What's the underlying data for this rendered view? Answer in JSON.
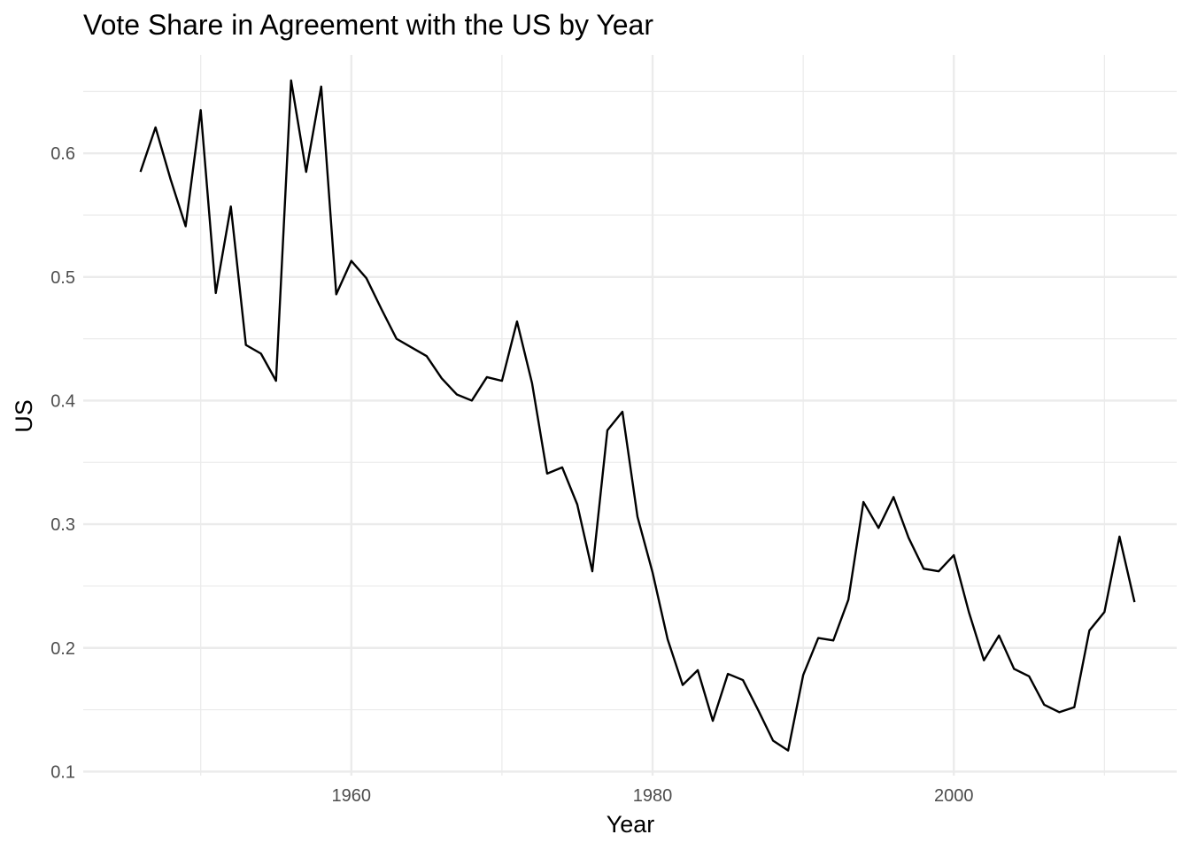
{
  "chart_data": {
    "type": "line",
    "title": "Vote Share in Agreement with the US by Year",
    "xlabel": "Year",
    "ylabel": "US",
    "xlim": [
      1942.2,
      2014.8
    ],
    "ylim": [
      0.0967,
      0.6796
    ],
    "x_ticks": [
      1960,
      1980,
      2000
    ],
    "x_tick_labels": [
      "1960",
      "1980",
      "2000"
    ],
    "x_minor_ticks": [
      1950,
      1970,
      1990,
      2010
    ],
    "y_ticks": [
      0.1,
      0.2,
      0.3,
      0.4,
      0.5,
      0.6
    ],
    "y_tick_labels": [
      "0.1",
      "0.2",
      "0.3",
      "0.4",
      "0.5",
      "0.6"
    ],
    "y_minor_ticks": [
      0.15,
      0.25,
      0.35,
      0.45,
      0.55,
      0.65
    ],
    "grid": true,
    "legend": "none",
    "series": [
      {
        "color": "#000000",
        "x": [
          1946,
          1947,
          1948,
          1949,
          1950,
          1951,
          1952,
          1953,
          1954,
          1955,
          1956,
          1957,
          1958,
          1959,
          1960,
          1961,
          1962,
          1963,
          1964,
          1965,
          1966,
          1967,
          1968,
          1969,
          1970,
          1971,
          1972,
          1973,
          1974,
          1975,
          1976,
          1977,
          1978,
          1979,
          1980,
          1981,
          1982,
          1983,
          1984,
          1985,
          1986,
          1987,
          1988,
          1989,
          1990,
          1991,
          1992,
          1993,
          1994,
          1995,
          1996,
          1997,
          1998,
          1999,
          2000,
          2001,
          2002,
          2003,
          2004,
          2005,
          2006,
          2007,
          2008,
          2009,
          2010,
          2011,
          2012
        ],
        "values": [
          0.585,
          0.621,
          0.579,
          0.541,
          0.635,
          0.487,
          0.557,
          0.445,
          0.438,
          0.416,
          0.659,
          0.585,
          0.654,
          0.486,
          0.513,
          0.499,
          0.474,
          0.45,
          0.443,
          0.436,
          0.418,
          0.405,
          0.4,
          0.419,
          0.416,
          0.464,
          0.414,
          0.341,
          0.346,
          0.316,
          0.262,
          0.376,
          0.391,
          0.306,
          0.261,
          0.207,
          0.17,
          0.182,
          0.141,
          0.179,
          0.174,
          0.15,
          0.125,
          0.117,
          0.178,
          0.208,
          0.206,
          0.239,
          0.318,
          0.297,
          0.322,
          0.289,
          0.264,
          0.262,
          0.275,
          0.229,
          0.19,
          0.21,
          0.183,
          0.177,
          0.154,
          0.148,
          0.152,
          0.214,
          0.229,
          0.29,
          0.237
        ]
      }
    ]
  }
}
